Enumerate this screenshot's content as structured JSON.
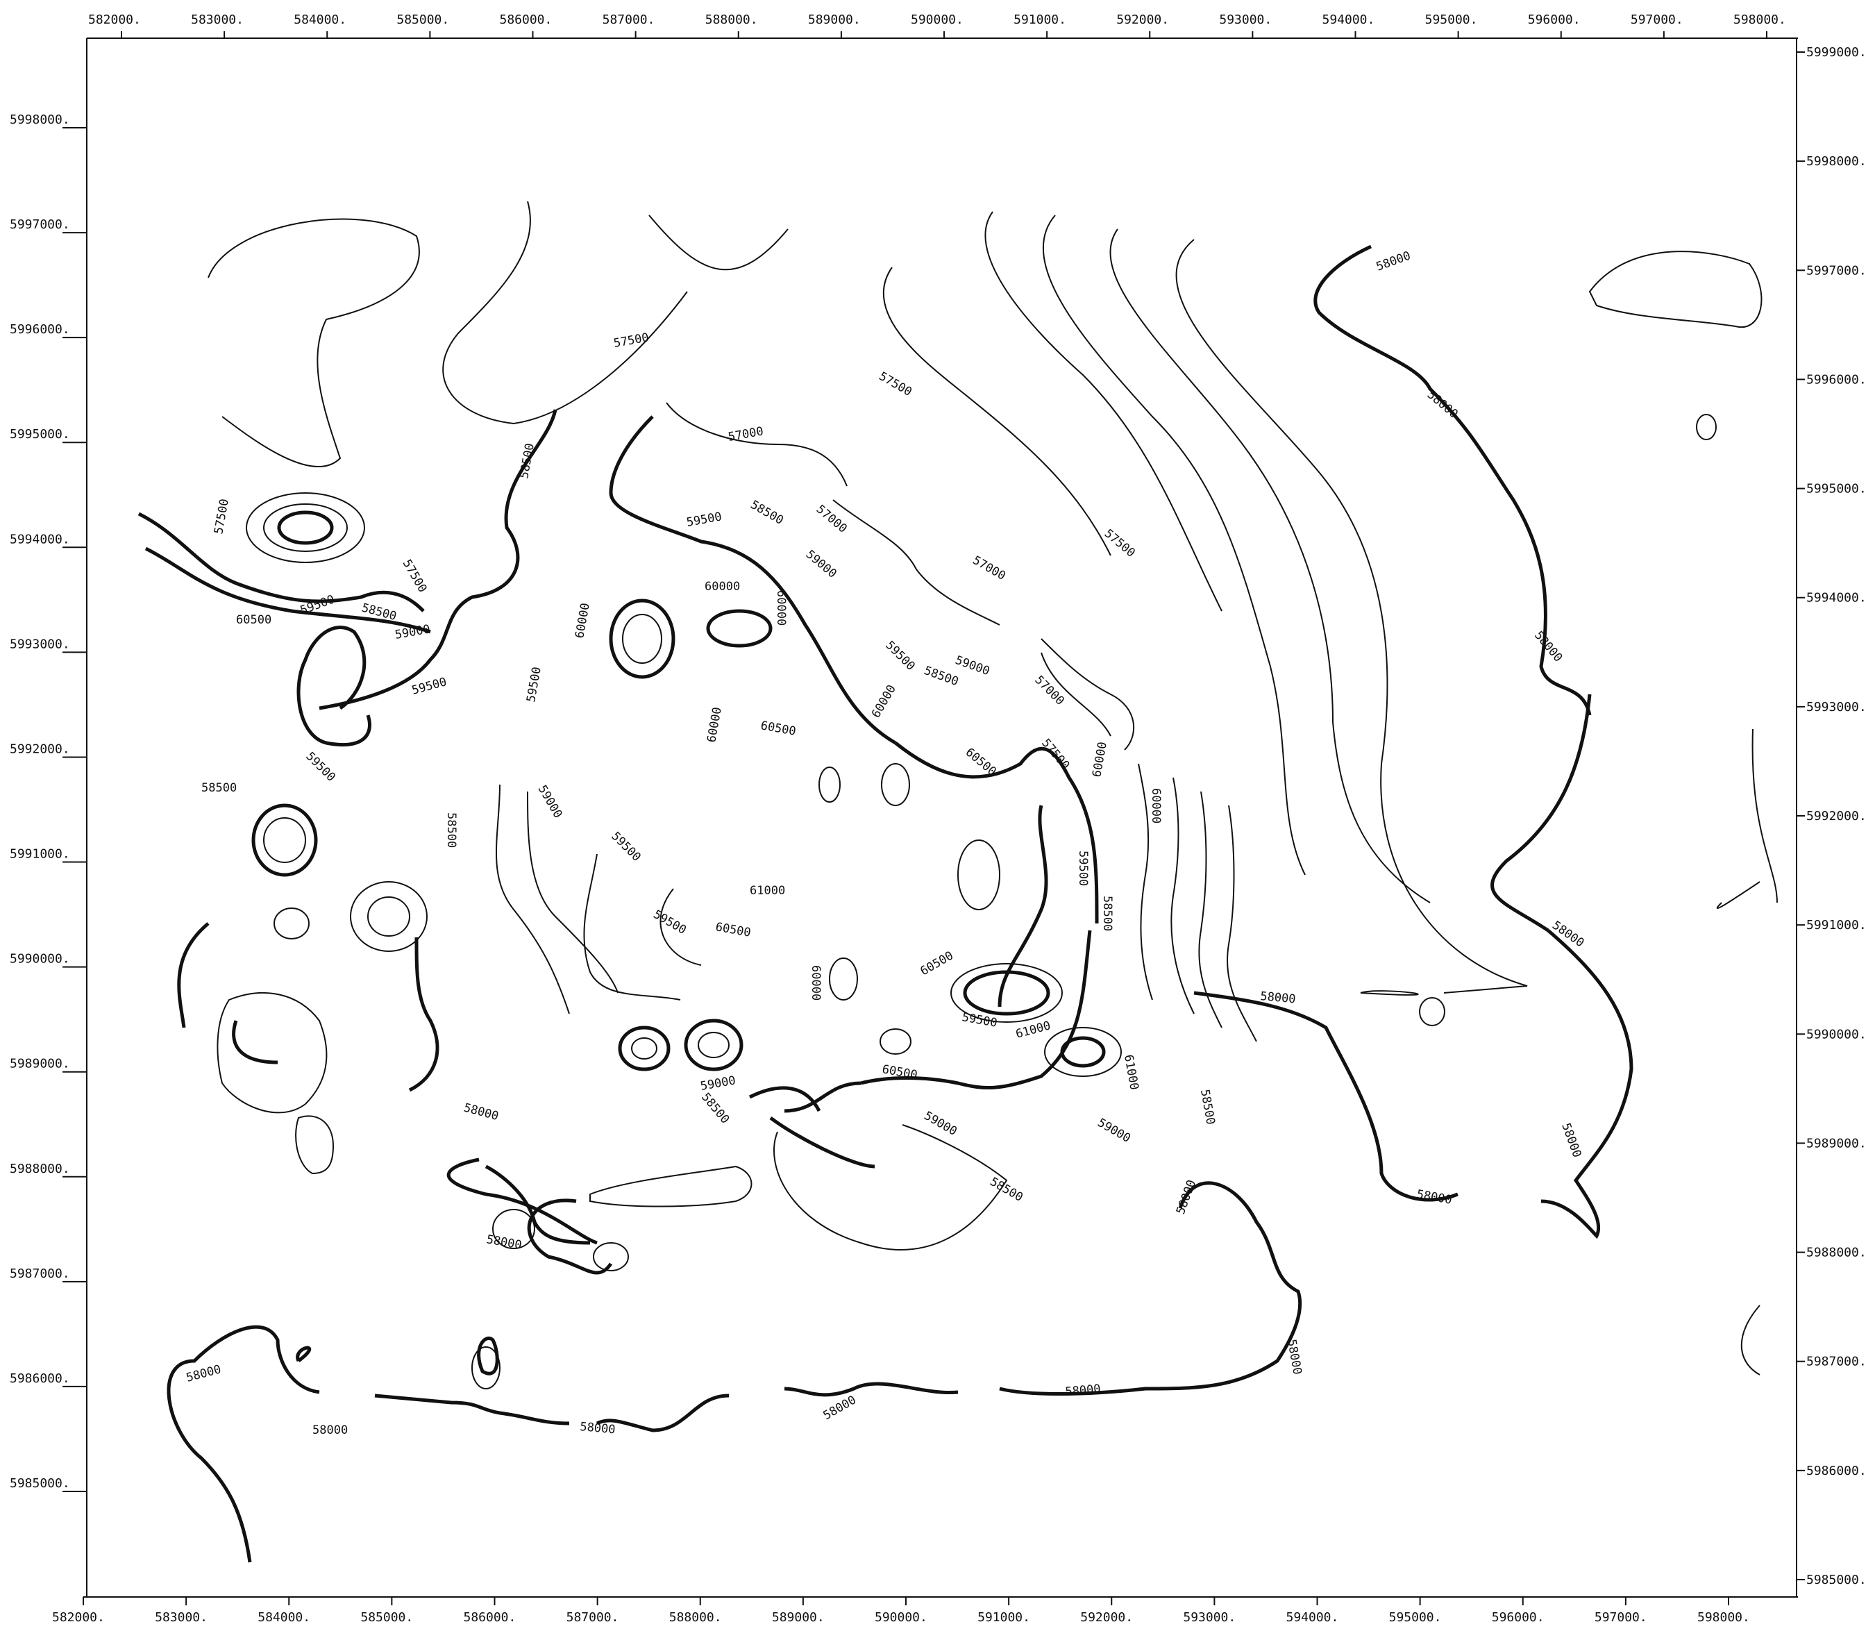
{
  "map": {
    "x_ticks": [
      "582000.",
      "583000.",
      "584000.",
      "585000.",
      "586000.",
      "587000.",
      "588000.",
      "589000.",
      "590000.",
      "591000.",
      "592000.",
      "593000.",
      "594000.",
      "595000.",
      "596000.",
      "597000.",
      "598000."
    ],
    "y_ticks_left": [
      "5998000.",
      "5997000.",
      "5996000.",
      "5995000.",
      "5994000.",
      "5993000.",
      "5992000.",
      "5991000.",
      "5990000.",
      "5989000.",
      "5988000.",
      "5987000.",
      "5986000.",
      "5985000."
    ],
    "y_ticks_right": [
      "5999000.",
      "5998000.",
      "5997000.",
      "5996000.",
      "5995000.",
      "5994000.",
      "5993000.",
      "5992000.",
      "5991000.",
      "5990000.",
      "5989000.",
      "5988000.",
      "5987000.",
      "5986000.",
      "5985000."
    ],
    "contour_labels": [
      "58000",
      "58000",
      "58000",
      "58000",
      "58000",
      "58000",
      "58000",
      "58000",
      "58000",
      "58000",
      "58000",
      "58000",
      "58000",
      "58000",
      "58000",
      "58000",
      "57500",
      "57500",
      "57500",
      "57500",
      "57500",
      "57500",
      "57000",
      "57000",
      "57000",
      "57000",
      "58500",
      "58500",
      "58500",
      "58500",
      "58500",
      "58500",
      "58500",
      "58500",
      "58500",
      "58500",
      "59000",
      "59000",
      "59000",
      "59000",
      "59000",
      "59000",
      "59000",
      "59500",
      "59500",
      "59500",
      "59500",
      "59500",
      "59500",
      "59500",
      "59500",
      "59500",
      "59500",
      "60000",
      "60000",
      "60000",
      "60000",
      "60000",
      "60000",
      "60000",
      "60000",
      "60500",
      "60500",
      "60500",
      "60500",
      "60500",
      "60500",
      "61000",
      "61000",
      "61000"
    ]
  }
}
